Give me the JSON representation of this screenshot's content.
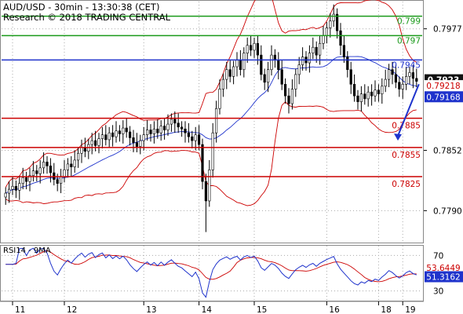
{
  "header": {
    "line1": "AUD/USD - 30min - 13:30:38 (CET)",
    "line2": "Research © 2018 TRADING CENTRAL"
  },
  "colors": {
    "green": "#1a9a1a",
    "blue": "#1f33cc",
    "red": "#cc0000",
    "dark": "#111111",
    "grid": "#aaaaaa"
  },
  "chart_data": [
    {
      "type": "candlestick",
      "title": "",
      "ylim": [
        0.7758,
        0.8005
      ],
      "axis_ticks": [
        {
          "value": 0.7977,
          "label": "0.7977"
        },
        {
          "value": 0.7852,
          "label": "0.7852"
        },
        {
          "value": 0.779,
          "label": "0.7790"
        }
      ],
      "levels": [
        {
          "value": 0.799,
          "label": "0.799",
          "color": "green"
        },
        {
          "value": 0.797,
          "label": "0.797",
          "color": "green"
        },
        {
          "value": 0.7945,
          "label": "0.7945",
          "color": "blue"
        },
        {
          "value": 0.7885,
          "label": "0.7885",
          "color": "red"
        },
        {
          "value": 0.7855,
          "label": "0.7855",
          "color": "red"
        },
        {
          "value": 0.7825,
          "label": "0.7825",
          "color": "red"
        }
      ],
      "price_tags": [
        {
          "value": 0.7923,
          "label": "0.7923",
          "style": "dark"
        },
        {
          "value": 0.79218,
          "label": "0.79218",
          "style": "red-text"
        },
        {
          "value": 0.79168,
          "label": "0.79168",
          "style": "blue"
        }
      ],
      "x_labels": [
        "11",
        "12",
        "13",
        "14",
        "15",
        "16",
        "18",
        "19"
      ],
      "forecast_arrow": {
        "from": 0.792,
        "to": 0.7862
      },
      "series": {
        "close": [
          0.7808,
          0.7812,
          0.7815,
          0.7811,
          0.7818,
          0.7824,
          0.782,
          0.7826,
          0.7831,
          0.7828,
          0.7834,
          0.784,
          0.7836,
          0.7829,
          0.7822,
          0.7818,
          0.7825,
          0.7832,
          0.7838,
          0.7835,
          0.7842,
          0.7849,
          0.7855,
          0.7851,
          0.7858,
          0.7862,
          0.7857,
          0.7864,
          0.7868,
          0.7863,
          0.787,
          0.7866,
          0.7872,
          0.7869,
          0.7875,
          0.7871,
          0.7865,
          0.786,
          0.7856,
          0.7862,
          0.7868,
          0.7873,
          0.7869,
          0.7874,
          0.787,
          0.7877,
          0.7873,
          0.7879,
          0.7884,
          0.788,
          0.7876,
          0.7874,
          0.787,
          0.7866,
          0.7862,
          0.7868,
          0.7858,
          0.782,
          0.78,
          0.7832,
          0.787,
          0.7895,
          0.7915,
          0.7925,
          0.7935,
          0.7928,
          0.7938,
          0.7945,
          0.7935,
          0.7952,
          0.796,
          0.7955,
          0.7962,
          0.795,
          0.793,
          0.7922,
          0.7935,
          0.795,
          0.7945,
          0.7935,
          0.792,
          0.7908,
          0.79,
          0.7915,
          0.793,
          0.794,
          0.7948,
          0.7942,
          0.7952,
          0.7958,
          0.795,
          0.7962,
          0.797,
          0.7978,
          0.7985,
          0.7992,
          0.7975,
          0.796,
          0.7948,
          0.7935,
          0.792,
          0.7908,
          0.7902,
          0.791,
          0.7905,
          0.7912,
          0.7908,
          0.7914,
          0.791,
          0.7918,
          0.7925,
          0.7935,
          0.793,
          0.7922,
          0.7915,
          0.792,
          0.7928,
          0.7932,
          0.7926,
          0.7923
        ],
        "rsi": {
          "ylim": [
            20,
            80
          ],
          "levels": [
            {
              "value": 70,
              "label": "70"
            },
            {
              "value": 30,
              "label": "30"
            }
          ],
          "title": "RSI14 - 9MA",
          "rsi_tag": {
            "value": 51.3162,
            "label": "51.3162"
          },
          "ma_tag": {
            "value": 53.6449,
            "label": "53.6449"
          }
        }
      }
    }
  ]
}
